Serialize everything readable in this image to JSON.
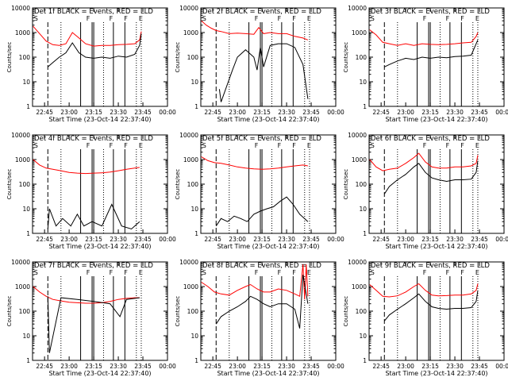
{
  "figure": {
    "panels": [
      {
        "title": "Det 1f BLACK = Events, RED = LLD",
        "xlabel": "Start Time (23-Oct-14 22:37:40)",
        "ylabel": "Counts/sec"
      },
      {
        "title": "Det 2f BLACK = Events, RED = LLD",
        "xlabel": "Start Time (23-Oct-14 22:37:40)",
        "ylabel": "Counts/sec"
      },
      {
        "title": "Det 3f BLACK = Events, RED = LLD",
        "xlabel": "Start Time (23-Oct-14 22:37:40)",
        "ylabel": "Counts/sec"
      },
      {
        "title": "Det 4f BLACK = Events, RED = LLD",
        "xlabel": "Start Time (23-Oct-14 22:37:40)",
        "ylabel": "Counts/sec"
      },
      {
        "title": "Det 5f BLACK = Events, RED = LLD",
        "xlabel": "Start Time (23-Oct-14 22:37:40)",
        "ylabel": "Counts/sec"
      },
      {
        "title": "Det 6f BLACK = Events, RED = LLD",
        "xlabel": "Start Time (23-Oct-14 22:37:40)",
        "ylabel": "Counts/sec"
      },
      {
        "title": "Det 7f BLACK = Events, RED = LLD",
        "xlabel": "Start Time (23-Oct-14 22:37:40)",
        "ylabel": "Counts/sec"
      },
      {
        "title": "Det 8f BLACK = Events, RED = LLD",
        "xlabel": "Start Time (23-Oct-14 22:37:40)",
        "ylabel": "Counts/sec"
      },
      {
        "title": "Det 9f BLACK = Events, RED = LLD",
        "xlabel": "Start Time (23-Oct-14 22:37:40)",
        "ylabel": "Counts/sec"
      }
    ],
    "x_tick_labels": [
      "22:45",
      "23:00",
      "23:15",
      "23:30",
      "23:45",
      "00:00"
    ],
    "y_tick_labels": [
      "1",
      "10",
      "100",
      "1000",
      "10000"
    ],
    "markers": [
      "S",
      "F",
      "F",
      "F",
      "E"
    ],
    "colors": {
      "events": "#000000",
      "lld": "#ff0000",
      "axes": "#000000"
    }
  },
  "chart_data": [
    {
      "type": "line",
      "panel": 1,
      "title": "Det 1f BLACK = Events, RED = LLD",
      "xlabel": "Start Time (23-Oct-14 22:37:40)",
      "ylabel": "Counts/sec",
      "y_scale": "log",
      "ylim": [
        1,
        10000
      ],
      "xlim": [
        "22:37:40",
        "00:00:00"
      ],
      "series": [
        {
          "name": "LLD",
          "x": [
            "22:38",
            "22:42",
            "22:46",
            "22:50",
            "22:54",
            "22:58",
            "23:02",
            "23:06",
            "23:10",
            "23:15",
            "23:20",
            "23:25",
            "23:30",
            "23:35",
            "23:40",
            "23:43",
            "23:44"
          ],
          "y": [
            1800,
            900,
            450,
            320,
            300,
            350,
            1000,
            600,
            350,
            280,
            300,
            300,
            320,
            330,
            350,
            500,
            1100
          ]
        },
        {
          "name": "Events",
          "x": [
            "22:47",
            "22:50",
            "22:54",
            "22:58",
            "23:02",
            "23:06",
            "23:10",
            "23:15",
            "23:20",
            "23:25",
            "23:30",
            "23:35",
            "23:40",
            "23:43",
            "23:44"
          ],
          "y": [
            40,
            60,
            100,
            150,
            380,
            150,
            100,
            90,
            100,
            90,
            110,
            100,
            130,
            300,
            900
          ]
        }
      ]
    },
    {
      "type": "line",
      "panel": 2,
      "title": "Det 2f BLACK = Events, RED = LLD",
      "xlabel": "Start Time (23-Oct-14 22:37:40)",
      "ylabel": "Counts/sec",
      "y_scale": "log",
      "ylim": [
        1,
        10000
      ],
      "xlim": [
        "22:37:40",
        "00:00:00"
      ],
      "series": [
        {
          "name": "LLD",
          "x": [
            "22:38",
            "22:41",
            "22:44",
            "22:47",
            "22:50",
            "22:55",
            "23:00",
            "23:05",
            "23:10",
            "23:13",
            "23:16",
            "23:20",
            "23:25",
            "23:30",
            "23:35",
            "23:40",
            "23:43"
          ],
          "y": [
            3000,
            2000,
            1500,
            1200,
            1100,
            900,
            950,
            900,
            850,
            1600,
            900,
            1000,
            900,
            900,
            700,
            600,
            500
          ]
        },
        {
          "name": "Events",
          "x": [
            "22:49",
            "22:50",
            "22:57",
            "23:00",
            "23:05",
            "23:10",
            "23:12",
            "23:14",
            "23:16",
            "23:20",
            "23:25",
            "23:30",
            "23:35",
            "23:40",
            "23:43"
          ],
          "y": [
            5,
            1.5,
            30,
            100,
            200,
            100,
            30,
            250,
            40,
            300,
            350,
            350,
            250,
            50,
            2
          ]
        }
      ]
    },
    {
      "type": "line",
      "panel": 3,
      "title": "Det 3f BLACK = Events, RED = LLD",
      "xlabel": "Start Time (23-Oct-14 22:37:40)",
      "ylabel": "Counts/sec",
      "y_scale": "log",
      "ylim": [
        1,
        10000
      ],
      "xlim": [
        "22:37:40",
        "00:00:00"
      ],
      "series": [
        {
          "name": "LLD",
          "x": [
            "22:38",
            "22:42",
            "22:46",
            "22:50",
            "22:55",
            "23:00",
            "23:05",
            "23:10",
            "23:15",
            "23:20",
            "23:25",
            "23:30",
            "23:35",
            "23:40",
            "23:43",
            "23:44"
          ],
          "y": [
            1300,
            800,
            400,
            350,
            300,
            350,
            300,
            350,
            330,
            320,
            330,
            350,
            380,
            400,
            700,
            1000
          ]
        },
        {
          "name": "Events",
          "x": [
            "22:47",
            "22:50",
            "22:55",
            "23:00",
            "23:05",
            "23:10",
            "23:15",
            "23:20",
            "23:25",
            "23:30",
            "23:35",
            "23:40",
            "23:43",
            "23:44"
          ],
          "y": [
            40,
            50,
            70,
            90,
            80,
            100,
            90,
            100,
            95,
            105,
            110,
            120,
            350,
            500
          ]
        }
      ]
    },
    {
      "type": "line",
      "panel": 4,
      "title": "Det 4f BLACK = Events, RED = LLD",
      "xlabel": "Start Time (23-Oct-14 22:37:40)",
      "ylabel": "Counts/sec",
      "y_scale": "log",
      "ylim": [
        1,
        10000
      ],
      "xlim": [
        "22:37:40",
        "00:00:00"
      ],
      "series": [
        {
          "name": "LLD",
          "x": [
            "22:38",
            "22:42",
            "22:46",
            "22:50",
            "22:55",
            "23:00",
            "23:05",
            "23:10",
            "23:15",
            "23:20",
            "23:25",
            "23:30",
            "23:35",
            "23:40",
            "23:43"
          ],
          "y": [
            1000,
            600,
            450,
            400,
            350,
            300,
            280,
            270,
            280,
            290,
            310,
            350,
            400,
            450,
            480
          ]
        },
        {
          "name": "Events",
          "x": [
            "22:47",
            "22:48",
            "22:52",
            "22:56",
            "23:01",
            "23:05",
            "23:09",
            "23:14",
            "23:20",
            "23:26",
            "23:32",
            "23:38",
            "23:43"
          ],
          "y": [
            1.5,
            10,
            2,
            4,
            2,
            6,
            2,
            3,
            2,
            15,
            2,
            1.5,
            3
          ]
        }
      ]
    },
    {
      "type": "line",
      "panel": 5,
      "title": "Det 5f BLACK = Events, RED = LLD",
      "xlabel": "Start Time (23-Oct-14 22:37:40)",
      "ylabel": "Counts/sec",
      "y_scale": "log",
      "ylim": [
        1,
        10000
      ],
      "xlim": [
        "22:37:40",
        "00:00:00"
      ],
      "series": [
        {
          "name": "LLD",
          "x": [
            "22:38",
            "22:42",
            "22:46",
            "22:50",
            "22:55",
            "23:00",
            "23:05",
            "23:10",
            "23:15",
            "23:20",
            "23:25",
            "23:30",
            "23:35",
            "23:40",
            "23:43"
          ],
          "y": [
            1300,
            900,
            750,
            700,
            600,
            500,
            450,
            420,
            400,
            420,
            450,
            500,
            550,
            600,
            550
          ]
        },
        {
          "name": "Events",
          "x": [
            "22:47",
            "22:50",
            "22:54",
            "22:58",
            "23:02",
            "23:06",
            "23:10",
            "23:14",
            "23:18",
            "23:22",
            "23:26",
            "23:30",
            "23:34",
            "23:38",
            "23:43"
          ],
          "y": [
            2,
            4,
            3,
            5,
            4,
            3,
            6,
            8,
            10,
            12,
            20,
            30,
            15,
            6,
            3
          ]
        }
      ]
    },
    {
      "type": "line",
      "panel": 6,
      "title": "Det 6f BLACK = Events, RED = LLD",
      "xlabel": "Start Time (23-Oct-14 22:37:40)",
      "ylabel": "Counts/sec",
      "y_scale": "log",
      "ylim": [
        1,
        10000
      ],
      "xlim": [
        "22:37:40",
        "00:00:00"
      ],
      "series": [
        {
          "name": "LLD",
          "x": [
            "22:38",
            "22:42",
            "22:46",
            "22:50",
            "22:55",
            "23:00",
            "23:05",
            "23:08",
            "23:12",
            "23:16",
            "23:20",
            "23:25",
            "23:30",
            "23:35",
            "23:40",
            "23:43",
            "23:44"
          ],
          "y": [
            1000,
            500,
            350,
            400,
            450,
            700,
            1200,
            1800,
            800,
            500,
            450,
            450,
            500,
            500,
            550,
            700,
            1500
          ]
        },
        {
          "name": "Events",
          "x": [
            "22:47",
            "22:50",
            "22:55",
            "23:00",
            "23:05",
            "23:08",
            "23:12",
            "23:16",
            "23:20",
            "23:25",
            "23:30",
            "23:35",
            "23:40",
            "23:43",
            "23:44"
          ],
          "y": [
            40,
            80,
            150,
            250,
            500,
            700,
            300,
            180,
            150,
            130,
            150,
            150,
            160,
            300,
            900
          ]
        }
      ]
    },
    {
      "type": "line",
      "panel": 7,
      "title": "Det 7f BLACK = Events, RED = LLD",
      "xlabel": "Start Time (23-Oct-14 22:37:40)",
      "ylabel": "Counts/sec",
      "y_scale": "log",
      "ylim": [
        1,
        10000
      ],
      "xlim": [
        "22:37:40",
        "00:00:00"
      ],
      "series": [
        {
          "name": "LLD",
          "x": [
            "22:38",
            "22:42",
            "22:46",
            "22:50",
            "22:55",
            "23:00",
            "23:05",
            "23:10",
            "23:15",
            "23:20",
            "23:25",
            "23:30",
            "23:35",
            "23:40",
            "23:43"
          ],
          "y": [
            1000,
            600,
            400,
            300,
            260,
            230,
            220,
            210,
            210,
            220,
            250,
            300,
            330,
            350,
            350
          ]
        },
        {
          "name": "Events",
          "x": [
            "22:47",
            "22:48",
            "22:55",
            "23:05",
            "23:15",
            "23:25",
            "23:31",
            "23:35",
            "23:43"
          ],
          "y": [
            400,
            2,
            350,
            300,
            250,
            200,
            60,
            300,
            350
          ]
        }
      ]
    },
    {
      "type": "line",
      "panel": 8,
      "title": "Det 8f BLACK = Events, RED = LLD",
      "xlabel": "Start Time (23-Oct-14 22:37:40)",
      "ylabel": "Counts/sec",
      "y_scale": "log",
      "ylim": [
        1,
        10000
      ],
      "xlim": [
        "22:37:40",
        "00:00:00"
      ],
      "series": [
        {
          "name": "LLD",
          "x": [
            "22:38",
            "22:42",
            "22:46",
            "22:50",
            "22:55",
            "23:00",
            "23:05",
            "23:08",
            "23:12",
            "23:16",
            "23:20",
            "23:25",
            "23:30",
            "23:35",
            "23:38",
            "23:40",
            "23:41",
            "23:42",
            "23:43"
          ],
          "y": [
            1500,
            1000,
            600,
            500,
            450,
            700,
            1000,
            1200,
            800,
            600,
            600,
            800,
            700,
            500,
            400,
            8000,
            300,
            8000,
            400
          ]
        },
        {
          "name": "Events",
          "x": [
            "22:47",
            "22:50",
            "22:55",
            "23:00",
            "23:05",
            "23:08",
            "23:12",
            "23:16",
            "23:20",
            "23:25",
            "23:30",
            "23:35",
            "23:38",
            "23:40",
            "23:43"
          ],
          "y": [
            30,
            60,
            100,
            150,
            250,
            400,
            300,
            200,
            150,
            200,
            200,
            120,
            20,
            3000,
            200
          ]
        }
      ]
    },
    {
      "type": "line",
      "panel": 9,
      "title": "Det 9f BLACK = Events, RED = LLD",
      "xlabel": "Start Time (23-Oct-14 22:37:40)",
      "ylabel": "Counts/sec",
      "y_scale": "log",
      "ylim": [
        1,
        10000
      ],
      "xlim": [
        "22:37:40",
        "00:00:00"
      ],
      "series": [
        {
          "name": "LLD",
          "x": [
            "22:38",
            "22:42",
            "22:46",
            "22:50",
            "22:55",
            "23:00",
            "23:05",
            "23:08",
            "23:12",
            "23:16",
            "23:20",
            "23:25",
            "23:30",
            "23:35",
            "23:40",
            "23:43",
            "23:44"
          ],
          "y": [
            1200,
            700,
            400,
            380,
            420,
            600,
            1000,
            1300,
            700,
            450,
            420,
            430,
            450,
            450,
            500,
            700,
            1300
          ]
        },
        {
          "name": "Events",
          "x": [
            "22:47",
            "22:50",
            "22:55",
            "23:00",
            "23:05",
            "23:08",
            "23:12",
            "23:16",
            "23:20",
            "23:25",
            "23:30",
            "23:35",
            "23:40",
            "23:43",
            "23:44"
          ],
          "y": [
            40,
            70,
            120,
            200,
            350,
            500,
            250,
            150,
            130,
            120,
            130,
            130,
            140,
            250,
            700
          ]
        }
      ]
    }
  ]
}
